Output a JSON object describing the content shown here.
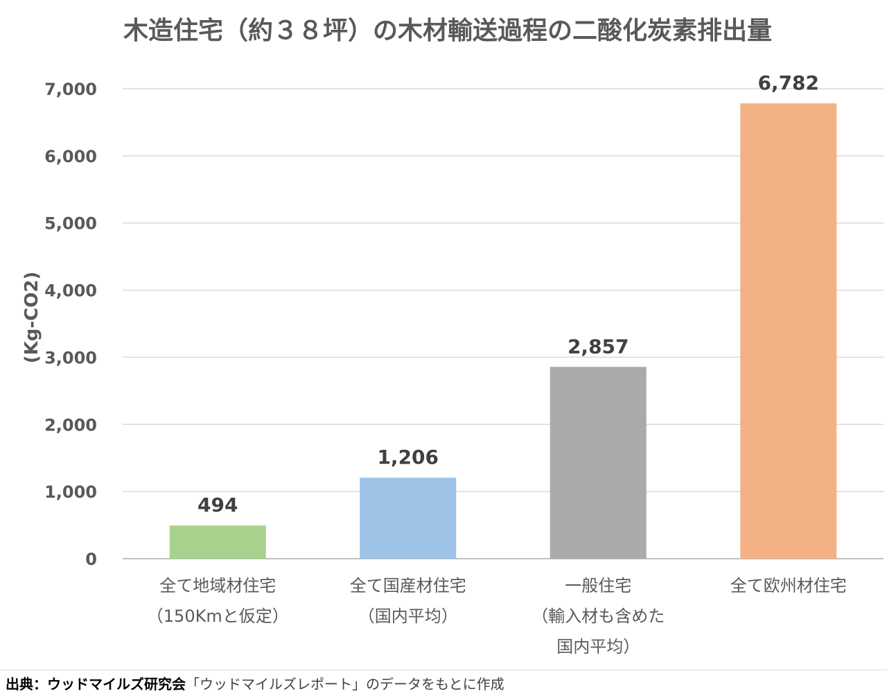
{
  "chart_data": {
    "type": "bar",
    "title": "木造住宅（約３８坪）の木材輸送過程の二酸化炭素排出量",
    "ylabel": "(Kg-CO2)",
    "xlabel": "",
    "ylim": [
      0,
      7000
    ],
    "yticks": [
      0,
      1000,
      2000,
      3000,
      4000,
      5000,
      6000,
      7000
    ],
    "ytick_labels": [
      "0",
      "1,000",
      "2,000",
      "3,000",
      "4,000",
      "5,000",
      "6,000",
      "7,000"
    ],
    "grid": true,
    "legend": "none",
    "categories": [
      [
        "全て地域材住宅",
        "（150Kmと仮定）"
      ],
      [
        "全て国産材住宅",
        "（国内平均）"
      ],
      [
        "一般住宅",
        "（輸入材も含めた",
        "国内平均）"
      ],
      [
        "全て欧州材住宅"
      ]
    ],
    "values": [
      494,
      1206,
      2857,
      6782
    ],
    "value_labels": [
      "494",
      "1,206",
      "2,857",
      "6,782"
    ],
    "colors": [
      "#a9d18e",
      "#9dc3e6",
      "#aaaaaa",
      "#f4b183"
    ]
  },
  "footer": {
    "source_label": "出典：ウッドマイルズ研究会",
    "source_text": "「ウッドマイルズレポート」のデータをもとに作成"
  }
}
